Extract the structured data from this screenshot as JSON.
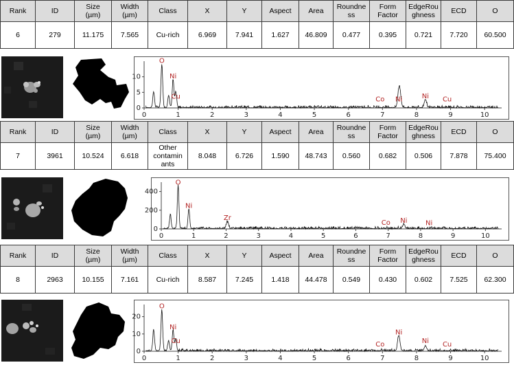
{
  "columns": [
    "Rank",
    "ID",
    "Size (µm)",
    "Width (µm)",
    "Class",
    "X",
    "Y",
    "Aspect",
    "Area",
    "Roundness",
    "Form Factor",
    "EdgeRoughness",
    "ECD",
    "O"
  ],
  "header_labels": [
    [
      "Rank"
    ],
    [
      "ID"
    ],
    [
      "Size",
      "(µm)"
    ],
    [
      "Width",
      "(µm)"
    ],
    [
      "Class"
    ],
    [
      "X"
    ],
    [
      "Y"
    ],
    [
      "Aspect"
    ],
    [
      "Area"
    ],
    [
      "Roundne",
      "ss"
    ],
    [
      "Form",
      "Factor"
    ],
    [
      "EdgeRou",
      "ghness"
    ],
    [
      "ECD"
    ],
    [
      "O"
    ]
  ],
  "colors": {
    "header_bg": "#dcdcdc",
    "element_label": "#b22222",
    "sem_bg": "#1b1b1b"
  },
  "particles": [
    {
      "rank": "6",
      "id": "279",
      "size": "11.175",
      "width": "7.565",
      "class_lines": [
        "Cu-rich"
      ],
      "x": "6.969",
      "y": "7.941",
      "aspect": "1.627",
      "area": "46.809",
      "roundness": "0.477",
      "form_factor": "0.395",
      "edge_roughness": "0.721",
      "ecd": "7.720",
      "o": "60.500",
      "spectrum": {
        "yticks": [
          "0",
          "5",
          "10"
        ],
        "ymax": 15,
        "xticks": [
          "0",
          "1",
          "2",
          "3",
          "4",
          "5",
          "6",
          "7",
          "8",
          "9",
          "10"
        ],
        "peaks": [
          [
            0.28,
            5
          ],
          [
            0.52,
            14
          ],
          [
            0.72,
            4
          ],
          [
            0.85,
            9
          ],
          [
            0.93,
            5
          ],
          [
            7.48,
            5
          ],
          [
            7.52,
            3
          ],
          [
            8.26,
            2.5
          ]
        ],
        "elements": [
          {
            "label": "O",
            "x": 0.52,
            "y": 14
          },
          {
            "label": "Ni",
            "x": 0.85,
            "y": 9
          },
          {
            "label": "Cu",
            "x": 0.93,
            "y": 2.5
          },
          {
            "label": "Co",
            "x": 6.93,
            "y": 1.6
          },
          {
            "label": "Ni",
            "x": 7.48,
            "y": 1.6
          },
          {
            "label": "Ni",
            "x": 8.26,
            "y": 2.6
          },
          {
            "label": "Cu",
            "x": 8.9,
            "y": 1.6
          }
        ]
      }
    },
    {
      "rank": "7",
      "id": "3961",
      "size": "10.524",
      "width": "6.618",
      "class_lines": [
        "Other",
        "contamin",
        "ants"
      ],
      "x": "8.048",
      "y": "6.726",
      "aspect": "1.590",
      "area": "48.743",
      "roundness": "0.560",
      "form_factor": "0.682",
      "edge_roughness": "0.506",
      "ecd": "7.878",
      "o": "75.400",
      "spectrum": {
        "yticks": [
          "0",
          "200",
          "400"
        ],
        "ymax": 500,
        "xticks": [
          "0",
          "1",
          "2",
          "3",
          "4",
          "5",
          "6",
          "7",
          "8",
          "9",
          "10"
        ],
        "peaks": [
          [
            0.28,
            150
          ],
          [
            0.52,
            460
          ],
          [
            0.85,
            210
          ],
          [
            2.04,
            70
          ],
          [
            7.48,
            45
          ]
        ],
        "elements": [
          {
            "label": "O",
            "x": 0.52,
            "y": 460
          },
          {
            "label": "Ni",
            "x": 0.85,
            "y": 210
          },
          {
            "label": "Zr",
            "x": 2.04,
            "y": 80
          },
          {
            "label": "Co",
            "x": 6.93,
            "y": 30
          },
          {
            "label": "Ni",
            "x": 7.48,
            "y": 50
          },
          {
            "label": "Ni",
            "x": 8.26,
            "y": 25
          }
        ]
      }
    },
    {
      "rank": "8",
      "id": "2963",
      "size": "10.155",
      "width": "7.161",
      "class_lines": [
        "Cu-rich"
      ],
      "x": "8.587",
      "y": "7.245",
      "aspect": "1.418",
      "area": "44.478",
      "roundness": "0.549",
      "form_factor": "0.430",
      "edge_roughness": "0.602",
      "ecd": "7.525",
      "o": "62.300",
      "spectrum": {
        "yticks": [
          "0",
          "10",
          "20"
        ],
        "ymax": 27,
        "xticks": [
          "0",
          "1",
          "2",
          "3",
          "4",
          "5",
          "6",
          "7",
          "8",
          "9",
          "10"
        ],
        "peaks": [
          [
            0.28,
            12
          ],
          [
            0.52,
            24
          ],
          [
            0.72,
            6
          ],
          [
            0.85,
            12
          ],
          [
            0.93,
            7
          ],
          [
            7.48,
            9
          ],
          [
            8.26,
            3
          ]
        ],
        "elements": [
          {
            "label": "O",
            "x": 0.52,
            "y": 24
          },
          {
            "label": "Ni",
            "x": 0.85,
            "y": 12
          },
          {
            "label": "Cu",
            "x": 0.93,
            "y": 4
          },
          {
            "label": "Co",
            "x": 6.93,
            "y": 2
          },
          {
            "label": "Ni",
            "x": 7.48,
            "y": 9
          },
          {
            "label": "Ni",
            "x": 8.26,
            "y": 4
          },
          {
            "label": "Cu",
            "x": 8.9,
            "y": 2
          }
        ]
      }
    }
  ]
}
